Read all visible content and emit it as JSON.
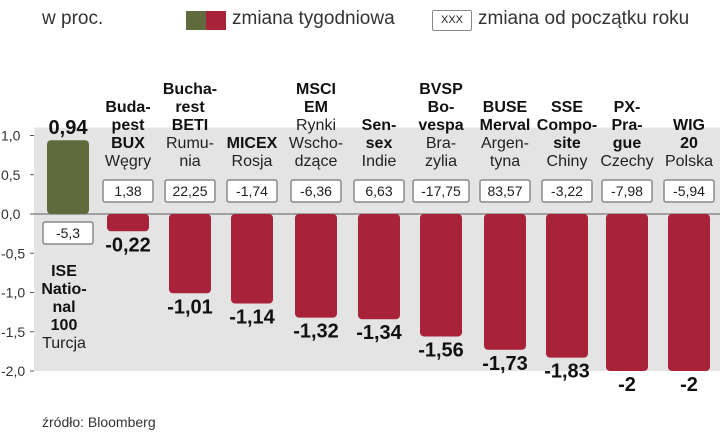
{
  "legend": {
    "unit": "w proc.",
    "weekly_label": "zmiana tygodniowa",
    "ytd_box": "XXX",
    "ytd_label": "zmiana od początku roku"
  },
  "source": "źródło: Bloomberg",
  "colors": {
    "positive": "#5f6b3c",
    "negative": "#a8223a",
    "plot_bg": "#e4e4e4"
  },
  "chart_data": {
    "type": "bar",
    "ylim": [
      -2.0,
      1.0
    ],
    "yticks": [
      "1,0",
      "0,5",
      "0,0",
      "-0,5",
      "-1,0",
      "-1,5",
      "-2,0"
    ],
    "ytick_values": [
      1.0,
      0.5,
      0.0,
      -0.5,
      -1.0,
      -1.5,
      -2.0
    ],
    "series": [
      {
        "name": "zmiana tygodniowa",
        "values": [
          0.94,
          -0.22,
          -1.01,
          -1.14,
          -1.32,
          -1.34,
          -1.56,
          -1.73,
          -1.83,
          -2,
          -2
        ]
      }
    ],
    "value_labels": [
      "0,94",
      "-0,22",
      "-1,01",
      "-1,14",
      "-1,32",
      "-1,34",
      "-1,56",
      "-1,73",
      "-1,83",
      "-2",
      "-2"
    ],
    "ytd_values": [
      "-5,3",
      "1,38",
      "22,25",
      "-1,74",
      "-6,36",
      "6,63",
      "-17,75",
      "83,57",
      "-3,22",
      "-7,98",
      "-5,94"
    ],
    "categories": [
      {
        "index_lines": [
          "ISE",
          "Natio-",
          "nal",
          "100"
        ],
        "country_lines": [
          "Turcja"
        ]
      },
      {
        "index_lines": [
          "Buda-",
          "pest",
          "BUX"
        ],
        "country_lines": [
          "Węgry"
        ]
      },
      {
        "index_lines": [
          "Bucha-",
          "rest",
          "BETI"
        ],
        "country_lines": [
          "Rumu-",
          "nia"
        ]
      },
      {
        "index_lines": [
          "MICEX"
        ],
        "country_lines": [
          "Rosja"
        ]
      },
      {
        "index_lines": [
          "MSCI",
          "EM"
        ],
        "country_lines": [
          "Rynki",
          "Wscho-",
          "dzące"
        ]
      },
      {
        "index_lines": [
          "Sen-",
          "sex"
        ],
        "country_lines": [
          "Indie"
        ]
      },
      {
        "index_lines": [
          "BVSP",
          "Bo-",
          "vespa"
        ],
        "country_lines": [
          "Bra-",
          "zylia"
        ]
      },
      {
        "index_lines": [
          "BUSE",
          "Merval"
        ],
        "country_lines": [
          "Argen-",
          "tyna"
        ]
      },
      {
        "index_lines": [
          "SSE",
          "Compo-",
          "site"
        ],
        "country_lines": [
          "Chiny"
        ]
      },
      {
        "index_lines": [
          "PX-",
          "Pra-",
          "gue"
        ],
        "country_lines": [
          "Czechy"
        ]
      },
      {
        "index_lines": [
          "WIG",
          "20"
        ],
        "country_lines": [
          "Polska"
        ]
      }
    ]
  }
}
